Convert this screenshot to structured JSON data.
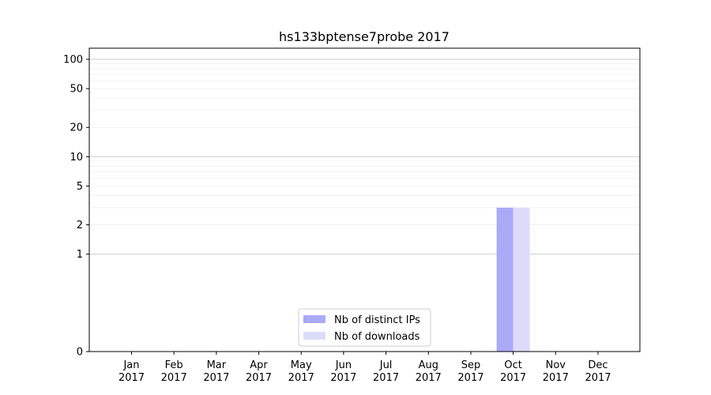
{
  "chart_data": {
    "type": "bar",
    "title": "hs133bptense7probe 2017",
    "xlabel": "",
    "ylabel": "",
    "yscale": "symlog",
    "ylim": [
      0,
      130
    ],
    "yticks": [
      0,
      1,
      2,
      5,
      10,
      20,
      50,
      100
    ],
    "grid": true,
    "legend_position": "bottom-center",
    "categories": [
      [
        "Jan",
        "2017"
      ],
      [
        "Feb",
        "2017"
      ],
      [
        "Mar",
        "2017"
      ],
      [
        "Apr",
        "2017"
      ],
      [
        "May",
        "2017"
      ],
      [
        "Jun",
        "2017"
      ],
      [
        "Jul",
        "2017"
      ],
      [
        "Aug",
        "2017"
      ],
      [
        "Sep",
        "2017"
      ],
      [
        "Oct",
        "2017"
      ],
      [
        "Nov",
        "2017"
      ],
      [
        "Dec",
        "2017"
      ]
    ],
    "series": [
      {
        "name": "Nb of distinct IPs",
        "color": "#aaaaf8",
        "values": [
          0,
          0,
          0,
          0,
          0,
          0,
          0,
          0,
          0,
          3,
          0,
          0
        ]
      },
      {
        "name": "Nb of downloads",
        "color": "#dcdcfa",
        "values": [
          0,
          0,
          0,
          0,
          0,
          0,
          0,
          0,
          0,
          3,
          0,
          0
        ]
      }
    ]
  }
}
